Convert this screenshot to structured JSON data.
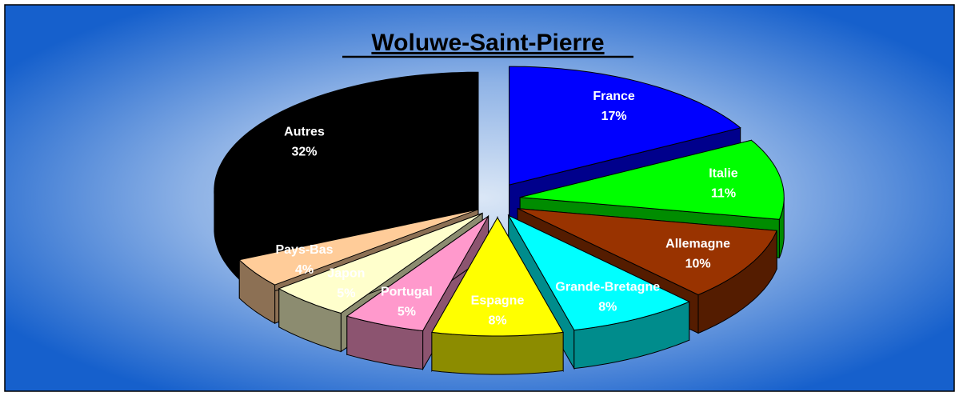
{
  "chart_data": {
    "type": "pie",
    "title": "Woluwe-Saint-Pierre",
    "categories": [
      "France",
      "Italie",
      "Allemagne",
      "Grande-Bretagne",
      "Espagne",
      "Portugal",
      "Japon",
      "Pays-Bas",
      "Autres"
    ],
    "values": [
      17,
      11,
      10,
      8,
      8,
      5,
      5,
      4,
      32
    ],
    "value_labels": [
      "17%",
      "11%",
      "10%",
      "8%",
      "8%",
      "5%",
      "5%",
      "4%",
      "32%"
    ],
    "colors": [
      "#0000ff",
      "#00ff00",
      "#993300",
      "#00ffff",
      "#ffff00",
      "#ff99cc",
      "#ffffcc",
      "#ffcc99",
      "#000000"
    ]
  }
}
